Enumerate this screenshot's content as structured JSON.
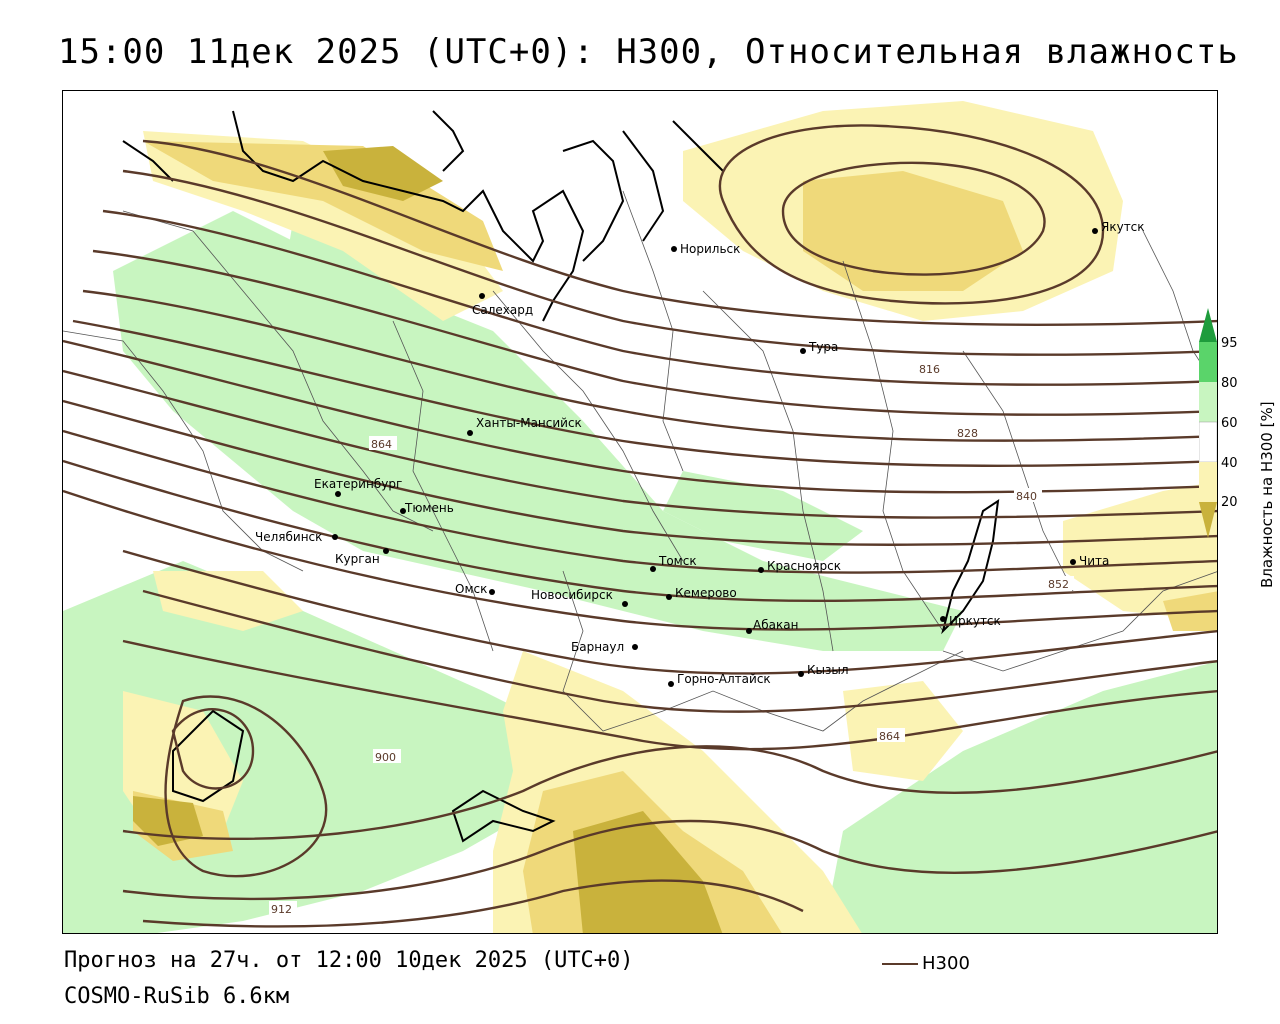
{
  "title": "15:00 11дек 2025 (UTC+0): H300, Относительная влажность",
  "footer": {
    "forecast": "Прогноз на 27ч. от 12:00 10дек 2025 (UTC+0)",
    "model": "COSMO-RuSib 6.6км",
    "contour_key": "H300"
  },
  "legend": {
    "title": "Влажность на H300 [%]",
    "ticks": [
      "95",
      "80",
      "60",
      "40",
      "20"
    ],
    "colors": {
      "dark_green": "#1e9c3c",
      "green": "#5ad46a",
      "light_green": "#c8f5c0",
      "white": "#ffffff",
      "light_yellow": "#fbf3b4",
      "yellow": "#efd97a",
      "olive": "#c9b23c"
    }
  },
  "colors": {
    "contour": "#5a3a2a",
    "border": "#000000"
  },
  "cities": [
    {
      "name": "Норильск"
    },
    {
      "name": "Якутск"
    },
    {
      "name": "Салехард"
    },
    {
      "name": "Тура"
    },
    {
      "name": "Ханты-Мансийск"
    },
    {
      "name": "Екатеринбург"
    },
    {
      "name": "Тюмень"
    },
    {
      "name": "Челябинск"
    },
    {
      "name": "Курган"
    },
    {
      "name": "Омск"
    },
    {
      "name": "Новосибирск"
    },
    {
      "name": "Томск"
    },
    {
      "name": "Кемерово"
    },
    {
      "name": "Красноярск"
    },
    {
      "name": "Абакан"
    },
    {
      "name": "Барнаул"
    },
    {
      "name": "Горно-Алтайск"
    },
    {
      "name": "Кызыл"
    },
    {
      "name": "Иркутск"
    },
    {
      "name": "Чита"
    }
  ],
  "contour_labels": [
    "816",
    "828",
    "840",
    "852",
    "864",
    "864",
    "900",
    "912"
  ]
}
